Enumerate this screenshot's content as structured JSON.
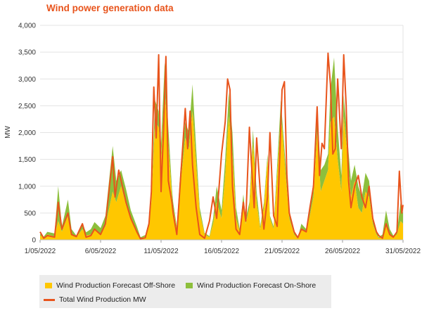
{
  "title": "Wind power generation data",
  "chart_data": {
    "type": "area",
    "title": "Wind power generation data",
    "ylabel": "MW",
    "xlabel": "",
    "ylim": [
      0,
      4000
    ],
    "yticks": [
      "0",
      "500",
      "1,000",
      "1,500",
      "2,000",
      "2,500",
      "3,000",
      "3,500",
      "4,000"
    ],
    "xticks": [
      "1/05/2022",
      "6/05/2022",
      "11/05/2022",
      "16/05/2022",
      "21/05/2022",
      "26/05/2022",
      "31/05/2022"
    ],
    "x_day_range": [
      1,
      31
    ],
    "grid": "horizontal",
    "legend_position": "bottom",
    "colors": {
      "offshore": "#FFC700",
      "onshore": "#8DBF3C",
      "total": "#E8541C"
    },
    "series": [
      {
        "name": "Wind Production Forecast Off-Shore",
        "kind": "area",
        "x": [
          1,
          1.3,
          1.6,
          2.2,
          2.5,
          2.8,
          3.3,
          3.6,
          4,
          4.5,
          4.8,
          5.2,
          5.5,
          6,
          6.4,
          7,
          7.3,
          7.7,
          8.1,
          8.5,
          9,
          9.3,
          9.7,
          10,
          10.2,
          10.5,
          10.8,
          11,
          11.3,
          11.6,
          11.9,
          12,
          12.3,
          12.6,
          13,
          13.3,
          13.6,
          13.9,
          14.2,
          14.6,
          15,
          15.3,
          15.6,
          16,
          16.3,
          16.6,
          16.9,
          17.2,
          17.5,
          17.8,
          18,
          18.3,
          18.6,
          18.9,
          19.2,
          19.5,
          19.8,
          20,
          20.3,
          20.6,
          20.9,
          21,
          21.3,
          21.6,
          22,
          22.3,
          22.6,
          23,
          23.3,
          23.6,
          23.9,
          24.2,
          24.5,
          24.8,
          25,
          25.3,
          25.6,
          25.9,
          26.1,
          26.4,
          26.7,
          27,
          27.3,
          27.6,
          27.9,
          28.2,
          28.5,
          28.8,
          29,
          29.3,
          29.6,
          29.9,
          30.2,
          30.5,
          30.8,
          31
        ],
        "values": [
          80,
          40,
          100,
          60,
          350,
          150,
          450,
          120,
          50,
          200,
          80,
          100,
          180,
          120,
          250,
          900,
          700,
          1000,
          650,
          400,
          150,
          30,
          60,
          300,
          700,
          2200,
          2100,
          1500,
          2800,
          1800,
          800,
          600,
          200,
          1000,
          1900,
          1700,
          2400,
          1400,
          500,
          100,
          50,
          300,
          700,
          400,
          1200,
          2300,
          1600,
          400,
          150,
          700,
          300,
          600,
          1800,
          700,
          200,
          600,
          1500,
          400,
          200,
          1200,
          2300,
          2100,
          1200,
          400,
          100,
          20,
          200,
          150,
          450,
          800,
          2000,
          900,
          1100,
          1300,
          2200,
          2300,
          1500,
          900,
          2300,
          1600,
          800,
          1100,
          600,
          500,
          900,
          800,
          300,
          100,
          30,
          60,
          250,
          100,
          50,
          100,
          350,
          300
        ]
      },
      {
        "name": "Wind Production Forecast On-Shore",
        "kind": "stacked-area",
        "x": [
          1,
          1.3,
          1.6,
          2.2,
          2.5,
          2.8,
          3.3,
          3.6,
          4,
          4.5,
          4.8,
          5.2,
          5.5,
          6,
          6.4,
          7,
          7.3,
          7.7,
          8.1,
          8.5,
          9,
          9.3,
          9.7,
          10,
          10.2,
          10.5,
          10.8,
          11,
          11.3,
          11.6,
          11.9,
          12,
          12.3,
          12.6,
          13,
          13.3,
          13.6,
          13.9,
          14.2,
          14.6,
          15,
          15.3,
          15.6,
          16,
          16.3,
          16.6,
          16.9,
          17.2,
          17.5,
          17.8,
          18,
          18.3,
          18.6,
          18.9,
          19.2,
          19.5,
          19.8,
          20,
          20.3,
          20.6,
          20.9,
          21,
          21.3,
          21.6,
          22,
          22.3,
          22.6,
          23,
          23.3,
          23.6,
          23.9,
          24.2,
          24.5,
          24.8,
          25,
          25.3,
          25.6,
          25.9,
          26.1,
          26.4,
          26.7,
          27,
          27.3,
          27.6,
          27.9,
          28.2,
          28.5,
          28.8,
          29,
          29.3,
          29.6,
          29.9,
          30.2,
          30.5,
          30.8,
          31
        ],
        "values": [
          30,
          20,
          50,
          60,
          650,
          100,
          300,
          80,
          30,
          100,
          60,
          100,
          150,
          100,
          200,
          850,
          400,
          300,
          300,
          150,
          100,
          20,
          30,
          50,
          50,
          400,
          300,
          300,
          500,
          300,
          150,
          100,
          50,
          300,
          300,
          300,
          500,
          300,
          100,
          30,
          20,
          100,
          300,
          150,
          300,
          450,
          400,
          200,
          50,
          150,
          100,
          100,
          250,
          200,
          50,
          100,
          100,
          50,
          50,
          200,
          300,
          200,
          200,
          100,
          40,
          10,
          100,
          50,
          100,
          300,
          450,
          400,
          300,
          300,
          600,
          1100,
          600,
          300,
          400,
          300,
          300,
          300,
          400,
          300,
          350,
          300,
          100,
          50,
          20,
          40,
          300,
          100,
          30,
          50,
          350,
          200
        ]
      },
      {
        "name": "Total Wind Production MW",
        "kind": "line",
        "x": [
          1,
          1.3,
          1.6,
          2.2,
          2.5,
          2.8,
          3.3,
          3.6,
          4,
          4.5,
          4.8,
          5.2,
          5.5,
          6,
          6.4,
          7,
          7.2,
          7.5,
          7.8,
          8.1,
          8.5,
          9,
          9.3,
          9.7,
          10,
          10.2,
          10.4,
          10.6,
          10.8,
          11,
          11.2,
          11.4,
          11.6,
          11.9,
          12,
          12.3,
          12.6,
          13,
          13.2,
          13.4,
          13.6,
          13.9,
          14.2,
          14.6,
          15,
          15.3,
          15.6,
          16,
          16.3,
          16.5,
          16.7,
          16.9,
          17.2,
          17.5,
          17.8,
          18,
          18.3,
          18.5,
          18.7,
          18.9,
          19.2,
          19.5,
          19.8,
          20,
          20.3,
          20.6,
          20.8,
          21,
          21.2,
          21.4,
          21.6,
          22,
          22.3,
          22.6,
          23,
          23.3,
          23.6,
          23.9,
          24.1,
          24.3,
          24.5,
          24.8,
          25,
          25.2,
          25.4,
          25.6,
          25.9,
          26.1,
          26.3,
          26.5,
          26.7,
          27,
          27.3,
          27.6,
          27.9,
          28.2,
          28.5,
          28.8,
          29,
          29.3,
          29.6,
          29.9,
          30.2,
          30.5,
          30.7,
          30.9,
          31
        ],
        "values": [
          150,
          30,
          80,
          50,
          700,
          200,
          500,
          100,
          60,
          300,
          50,
          80,
          200,
          100,
          300,
          1550,
          800,
          1300,
          1000,
          700,
          400,
          150,
          20,
          40,
          300,
          900,
          2850,
          1900,
          3450,
          900,
          2000,
          3420,
          1100,
          700,
          500,
          100,
          1100,
          2450,
          1700,
          2400,
          1400,
          600,
          100,
          30,
          350,
          800,
          400,
          1600,
          2200,
          3000,
          2800,
          1000,
          200,
          100,
          700,
          350,
          2100,
          1300,
          600,
          1900,
          900,
          200,
          800,
          2000,
          450,
          250,
          1500,
          2800,
          2950,
          1200,
          500,
          150,
          40,
          200,
          150,
          600,
          1000,
          2480,
          1200,
          1800,
          1700,
          3480,
          2900,
          1600,
          1700,
          3000,
          1700,
          3450,
          2500,
          1100,
          600,
          1000,
          1200,
          800,
          600,
          1000,
          400,
          150,
          80,
          30,
          300,
          100,
          50,
          150,
          1280,
          500,
          650
        ]
      }
    ]
  },
  "legend": {
    "offshore_label": "Wind Production Forecast Off-Shore",
    "onshore_label": "Wind Production Forecast On-Shore",
    "total_label": "Total Wind Production MW"
  }
}
